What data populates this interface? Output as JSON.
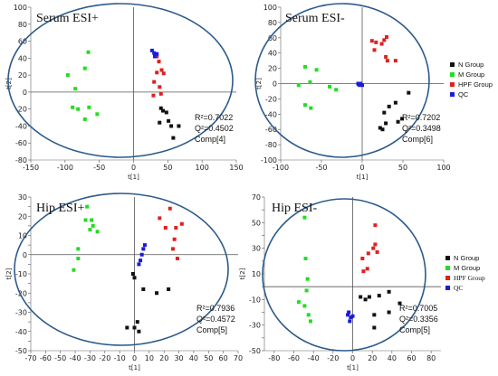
{
  "colors": {
    "N Group": "#111111",
    "M Group": "#22dd22",
    "HPF Group": "#e02020",
    "QC": "#1a1ae0",
    "ellipse": "#2c5a8a"
  },
  "chart_data": [
    {
      "type": "scatter",
      "title": "Serum ESI+",
      "xlabel": "t[1]",
      "ylabel": "t[2]",
      "xlim": [
        -150,
        150
      ],
      "ylim": [
        -80,
        100
      ],
      "xticks": [
        -150,
        -100,
        -50,
        0,
        50,
        100,
        150
      ],
      "yticks": [
        -80,
        -60,
        -40,
        -20,
        0,
        20,
        40,
        60,
        80,
        100
      ],
      "stats": {
        "r2": "0.7022",
        "q2": "0.4502",
        "comp": "Comp[4]"
      },
      "series": [
        {
          "name": "N Group",
          "points": [
            [
              43,
              -22
            ],
            [
              48,
              -24
            ],
            [
              51,
              -34
            ],
            [
              55,
              -40
            ],
            [
              58,
              -54
            ],
            [
              66,
              -40
            ],
            [
              40,
              -19
            ],
            [
              38,
              -36
            ]
          ]
        },
        {
          "name": "M Group",
          "points": [
            [
              -66,
              47
            ],
            [
              -71,
              28
            ],
            [
              -96,
              20
            ],
            [
              -85,
              4
            ],
            [
              -89,
              -18
            ],
            [
              -81,
              -20
            ],
            [
              -65,
              -18
            ],
            [
              -71,
              -32
            ],
            [
              -53,
              -26
            ]
          ]
        },
        {
          "name": "HPF Group",
          "points": [
            [
              34,
              42
            ],
            [
              37,
              36
            ],
            [
              34,
              23
            ],
            [
              44,
              22
            ],
            [
              41,
              26
            ],
            [
              30,
              12
            ],
            [
              38,
              6
            ],
            [
              40,
              -2
            ],
            [
              29,
              -4
            ]
          ]
        },
        {
          "name": "QC",
          "points": [
            [
              27,
              49
            ],
            [
              30,
              46
            ],
            [
              34,
              45
            ],
            [
              31,
              42
            ]
          ]
        }
      ]
    },
    {
      "type": "scatter",
      "title": "Serum ESI-",
      "xlabel": "t[1]",
      "ylabel": "t[2]",
      "xlim": [
        -100,
        100
      ],
      "ylim": [
        -100,
        100
      ],
      "xticks": [
        -100,
        -50,
        0,
        50,
        100
      ],
      "yticks": [
        -100,
        -80,
        -60,
        -40,
        -20,
        0,
        20,
        40,
        60,
        80,
        100
      ],
      "stats": {
        "r2": "0.7202",
        "q2": "0.3498",
        "comp": "Comp[6]"
      },
      "series": [
        {
          "name": "N Group",
          "points": [
            [
              33,
              -30
            ],
            [
              41,
              -25
            ],
            [
              44,
              -50
            ],
            [
              49,
              -46
            ],
            [
              57,
              -12
            ],
            [
              27,
              -38
            ],
            [
              29,
              -52
            ],
            [
              22,
              -58
            ],
            [
              25,
              -60
            ]
          ]
        },
        {
          "name": "M Group",
          "points": [
            [
              -70,
              22
            ],
            [
              -78,
              -2
            ],
            [
              -70,
              -28
            ],
            [
              -63,
              -32
            ],
            [
              -56,
              18
            ],
            [
              -64,
              2
            ],
            [
              -40,
              -4
            ],
            [
              -32,
              -8
            ]
          ]
        },
        {
          "name": "HPF Group",
          "points": [
            [
              12,
              56
            ],
            [
              17,
              54
            ],
            [
              27,
              57
            ],
            [
              30,
              61
            ],
            [
              29,
              35
            ],
            [
              31,
              30
            ],
            [
              41,
              30
            ],
            [
              24,
              52
            ],
            [
              15,
              44
            ]
          ]
        },
        {
          "name": "QC",
          "points": [
            [
              -5,
              0
            ],
            [
              -3,
              -2
            ],
            [
              -2,
              0
            ],
            [
              0,
              -2
            ],
            [
              -4,
              -1
            ]
          ]
        }
      ]
    },
    {
      "type": "scatter",
      "title": "Hip ESI+",
      "xlabel": "t[1]",
      "ylabel": "t[2]",
      "xlim": [
        -70,
        70
      ],
      "ylim": [
        -50,
        30
      ],
      "xticks": [
        -70,
        -60,
        -50,
        -40,
        -30,
        -20,
        -10,
        0,
        10,
        20,
        30,
        40,
        50,
        60,
        70
      ],
      "yticks": [
        -50,
        -45,
        -40,
        -35,
        -30,
        -25,
        -20,
        -15,
        -10,
        -5,
        0,
        5,
        10,
        15,
        20,
        25,
        30
      ],
      "stats": {
        "r2": "0.7936",
        "q2": "0.4572",
        "comp": "Comp[5]"
      },
      "series": [
        {
          "name": "N Group",
          "points": [
            [
              -1,
              -10
            ],
            [
              0,
              -12
            ],
            [
              6,
              -18
            ],
            [
              15,
              -20
            ],
            [
              23,
              -18
            ],
            [
              2,
              -35
            ],
            [
              0,
              -38
            ],
            [
              3,
              -40
            ],
            [
              -5,
              -38
            ]
          ]
        },
        {
          "name": "M Group",
          "points": [
            [
              -41,
              -8
            ],
            [
              -38,
              -2
            ],
            [
              -38,
              3
            ],
            [
              -33,
              18
            ],
            [
              -30,
              13
            ],
            [
              -28,
              15
            ],
            [
              -25,
              12
            ],
            [
              -32,
              25
            ],
            [
              -29,
              18
            ]
          ]
        },
        {
          "name": "HPF Group",
          "points": [
            [
              17,
              19
            ],
            [
              21,
              14
            ],
            [
              24,
              24
            ],
            [
              28,
              14
            ],
            [
              32,
              16
            ],
            [
              27,
              8
            ],
            [
              26,
              3
            ],
            [
              29,
              -2
            ]
          ]
        },
        {
          "name": "QC",
          "points": [
            [
              3,
              -5
            ],
            [
              5,
              0
            ],
            [
              6,
              3
            ],
            [
              7,
              5
            ],
            [
              4,
              -3
            ]
          ]
        }
      ]
    },
    {
      "type": "scatter",
      "title": "Hip ESI-",
      "xlabel": "t[1]",
      "ylabel": "t[2]",
      "xlim": [
        -90,
        90
      ],
      "ylim": [
        -50,
        70
      ],
      "xticks": [
        -80,
        -60,
        -40,
        -20,
        0,
        20,
        40,
        60,
        80
      ],
      "yticks": [
        -50,
        -40,
        -30,
        -20,
        -10,
        0,
        10,
        20,
        30,
        40,
        50,
        60,
        70
      ],
      "stats": {
        "r2": "0.7005",
        "q2": "0.3356",
        "comp": "Comp[5]"
      },
      "series": [
        {
          "name": "N Group",
          "points": [
            [
              8,
              -8
            ],
            [
              13,
              -10
            ],
            [
              22,
              -22
            ],
            [
              22,
              -32
            ],
            [
              27,
              -7
            ],
            [
              37,
              -4
            ],
            [
              48,
              -13
            ],
            [
              37,
              -20
            ],
            [
              17,
              -8
            ]
          ]
        },
        {
          "name": "M Group",
          "points": [
            [
              -49,
              54
            ],
            [
              -48,
              22
            ],
            [
              -47,
              -3
            ],
            [
              -45,
              -22
            ],
            [
              -43,
              -27
            ],
            [
              -49,
              -15
            ],
            [
              -46,
              6
            ],
            [
              -55,
              -12
            ]
          ]
        },
        {
          "name": "HPF Group",
          "points": [
            [
              11,
              12
            ],
            [
              16,
              26
            ],
            [
              21,
              30
            ],
            [
              23,
              33
            ],
            [
              25,
              27
            ],
            [
              23,
              48
            ],
            [
              15,
              14
            ],
            [
              10,
              22
            ]
          ]
        },
        {
          "name": "QC",
          "points": [
            [
              -4,
              -20
            ],
            [
              -2,
              -24
            ],
            [
              -3,
              -27
            ],
            [
              -5,
              -22
            ],
            [
              0,
              -23
            ]
          ]
        }
      ]
    }
  ],
  "legends": [
    {
      "items": [
        "N Group",
        "M Group",
        "HPF Group",
        "QC"
      ]
    },
    {
      "items": [
        "N Group",
        "M Group",
        "HPF Group",
        "QC"
      ]
    }
  ]
}
